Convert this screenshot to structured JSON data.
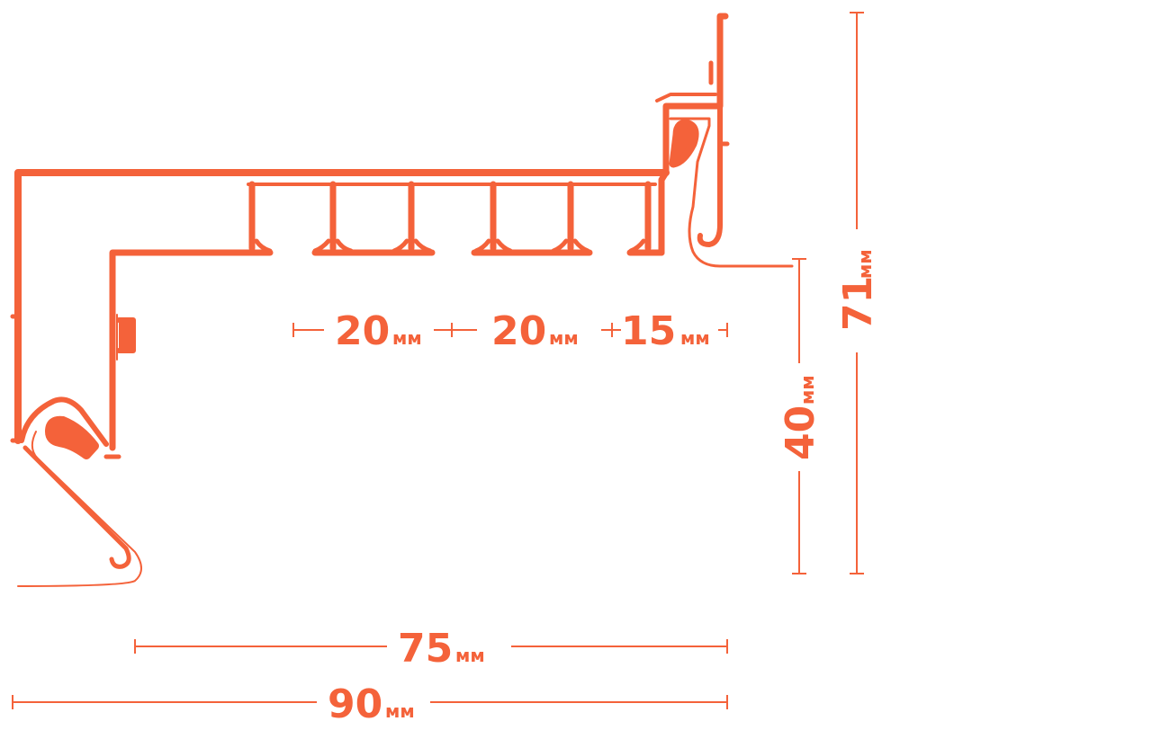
{
  "colors": {
    "profile": "#f4623a",
    "dimension": "#f4623a",
    "background": "#ffffff"
  },
  "dimensions": {
    "unit": "мм",
    "segment_a": "20",
    "segment_b": "20",
    "segment_c": "15",
    "inner_width": "75",
    "total_width": "90",
    "lip_height": "40",
    "total_height": "71"
  }
}
